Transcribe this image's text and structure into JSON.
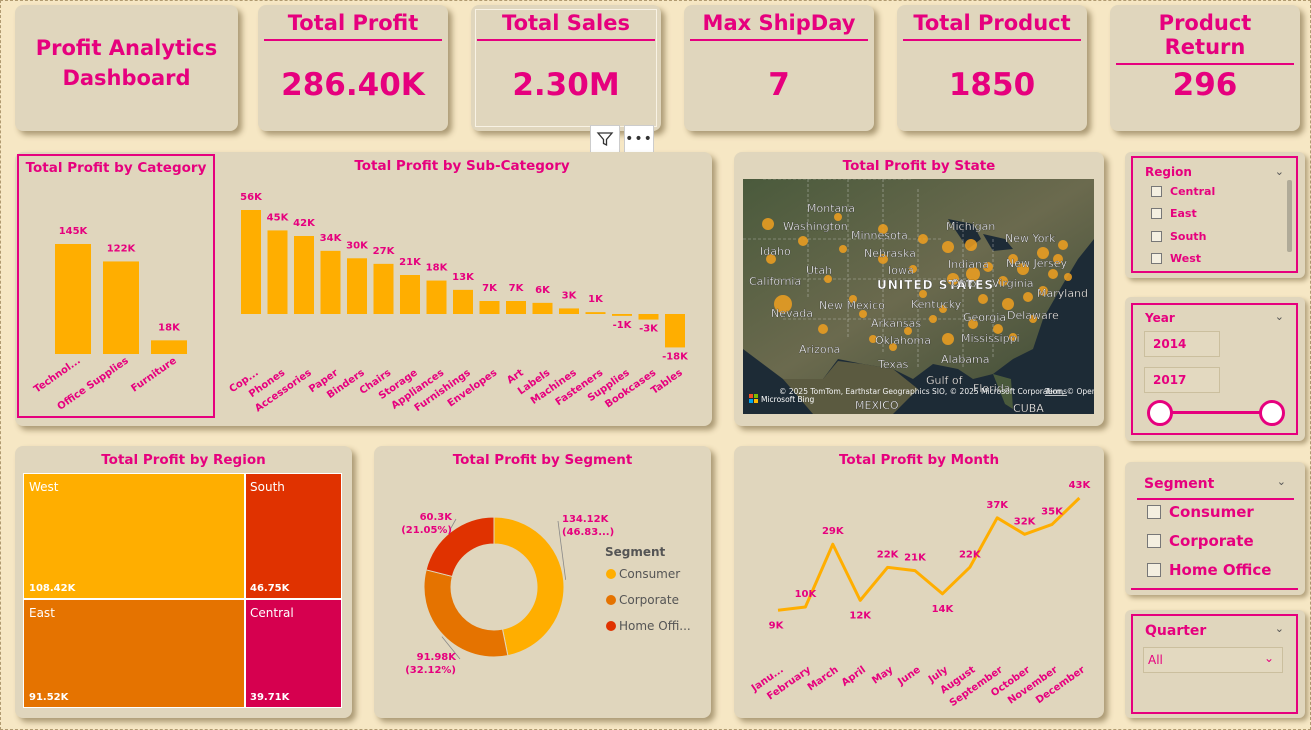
{
  "dashboard_title_line1": "Profit Analytics",
  "dashboard_title_line2": "Dashboard",
  "kpis": [
    {
      "title": "Total Profit",
      "value": "286.40K"
    },
    {
      "title": "Total Sales",
      "value": "2.30M"
    },
    {
      "title": "Max ShipDay",
      "value": "7"
    },
    {
      "title": "Total Product",
      "value": "1850"
    },
    {
      "title": "Product Return",
      "value": "296"
    }
  ],
  "colors": {
    "accent": "#e6007e",
    "bar": "#ffae00",
    "orange": "#e57300",
    "red": "#e03200",
    "card": "#e0d6bd",
    "bg": "#f6e7c4"
  },
  "visual_header_icons": [
    "filter-icon",
    "more-options-icon"
  ],
  "category_chart": {
    "title": "Total Profit by Category",
    "chart_data": {
      "type": "bar",
      "categories": [
        "Technol...",
        "Office Supplies",
        "Furniture"
      ],
      "values": [
        145,
        122,
        18
      ],
      "labels": [
        "145K",
        "122K",
        "18K"
      ]
    }
  },
  "subcategory_chart": {
    "title": "Total Profit by Sub-Category",
    "chart_data": {
      "type": "bar",
      "categories": [
        "Cop...",
        "Phones",
        "Accessories",
        "Paper",
        "Binders",
        "Chairs",
        "Storage",
        "Appliances",
        "Furnishings",
        "Envelopes",
        "Art",
        "Labels",
        "Machines",
        "Fasteners",
        "Supplies",
        "Bookcases",
        "Tables"
      ],
      "values": [
        56,
        45,
        42,
        34,
        30,
        27,
        21,
        18,
        13,
        7,
        7,
        6,
        3,
        1,
        -1,
        -3,
        -18
      ],
      "labels": [
        "56K",
        "45K",
        "42K",
        "34K",
        "30K",
        "27K",
        "21K",
        "18K",
        "13K",
        "7K",
        "7K",
        "6K",
        "3K",
        "1K",
        "-1K",
        "-3K",
        "-18K"
      ]
    }
  },
  "map": {
    "title": "Total Profit by State",
    "state_labels": [
      "Montana",
      "Washington",
      "Minnesota",
      "Michigan",
      "Idaho",
      "Nebraska",
      "New York",
      "Indiana",
      "New Jersey",
      "Utah",
      "Iowa",
      "California",
      "UNITED STATES",
      "Ohio",
      "Virginia",
      "Maryland",
      "Nevada",
      "New Mexico",
      "Kentucky",
      "Delaware",
      "Georgia",
      "Arkansas",
      "Oklahoma",
      "Mississippi",
      "Arizona",
      "Texas",
      "Alabama",
      "Gulf of",
      "Florida",
      "MEXICO",
      "CUBA"
    ],
    "attribution": "© 2025 TomTom, Earthstar Geographics SIO, © 2025 Microsoft Corporation, © OpenStreetMap",
    "terms": "Terms",
    "brand": "Microsoft Bing"
  },
  "region_slicer": {
    "header": "Region",
    "items": [
      "Central",
      "East",
      "South",
      "West"
    ]
  },
  "year_slicer": {
    "header": "Year",
    "from": "2014",
    "to": "2017"
  },
  "segment_slicer": {
    "header": "Segment",
    "items": [
      "Consumer",
      "Corporate",
      "Home Office"
    ]
  },
  "quarter_slicer": {
    "header": "Quarter",
    "value": "All"
  },
  "region_treemap": {
    "title": "Total Profit by Region",
    "chart_data": {
      "type": "treemap",
      "categories": [
        "West",
        "South",
        "East",
        "Central"
      ],
      "values": [
        108.42,
        46.75,
        91.52,
        39.71
      ],
      "labels": [
        "108.42K",
        "46.75K",
        "91.52K",
        "39.71K"
      ]
    }
  },
  "segment_donut": {
    "title": "Total Profit by Segment",
    "legend_title": "Segment",
    "chart_data": {
      "type": "pie",
      "categories": [
        "Consumer",
        "Corporate",
        "Home Offi..."
      ],
      "values": [
        134.12,
        91.98,
        60.3
      ],
      "labels": [
        "134.12K",
        "91.98K",
        "60.3K"
      ],
      "pct_labels": [
        "(46.83...)",
        "(32.12%)",
        "(21.05%)"
      ]
    }
  },
  "month_chart": {
    "title": "Total Profit by Month",
    "chart_data": {
      "type": "line",
      "categories": [
        "Janu...",
        "February",
        "March",
        "April",
        "May",
        "June",
        "July",
        "August",
        "September",
        "October",
        "November",
        "December"
      ],
      "values": [
        9,
        10,
        29,
        12,
        22,
        21,
        14,
        22,
        37,
        32,
        35,
        43
      ],
      "labels": [
        "9K",
        "10K",
        "29K",
        "12K",
        "22K",
        "21K",
        "14K",
        "22K",
        "37K",
        "32K",
        "35K",
        "43K"
      ]
    }
  }
}
